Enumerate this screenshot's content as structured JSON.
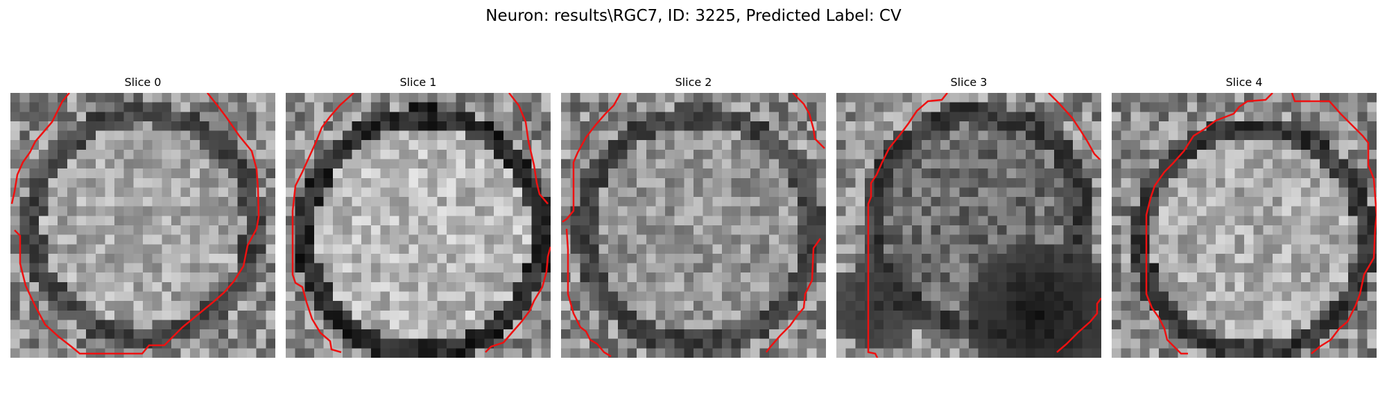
{
  "figure": {
    "suptitle": "Neuron: results\\RGC7, ID: 3225, Predicted Label: CV",
    "contour_color": "#ee1111"
  },
  "panels": [
    {
      "title": "Slice 0"
    },
    {
      "title": "Slice 1"
    },
    {
      "title": "Slice 2"
    },
    {
      "title": "Slice 3"
    },
    {
      "title": "Slice 4"
    }
  ]
}
